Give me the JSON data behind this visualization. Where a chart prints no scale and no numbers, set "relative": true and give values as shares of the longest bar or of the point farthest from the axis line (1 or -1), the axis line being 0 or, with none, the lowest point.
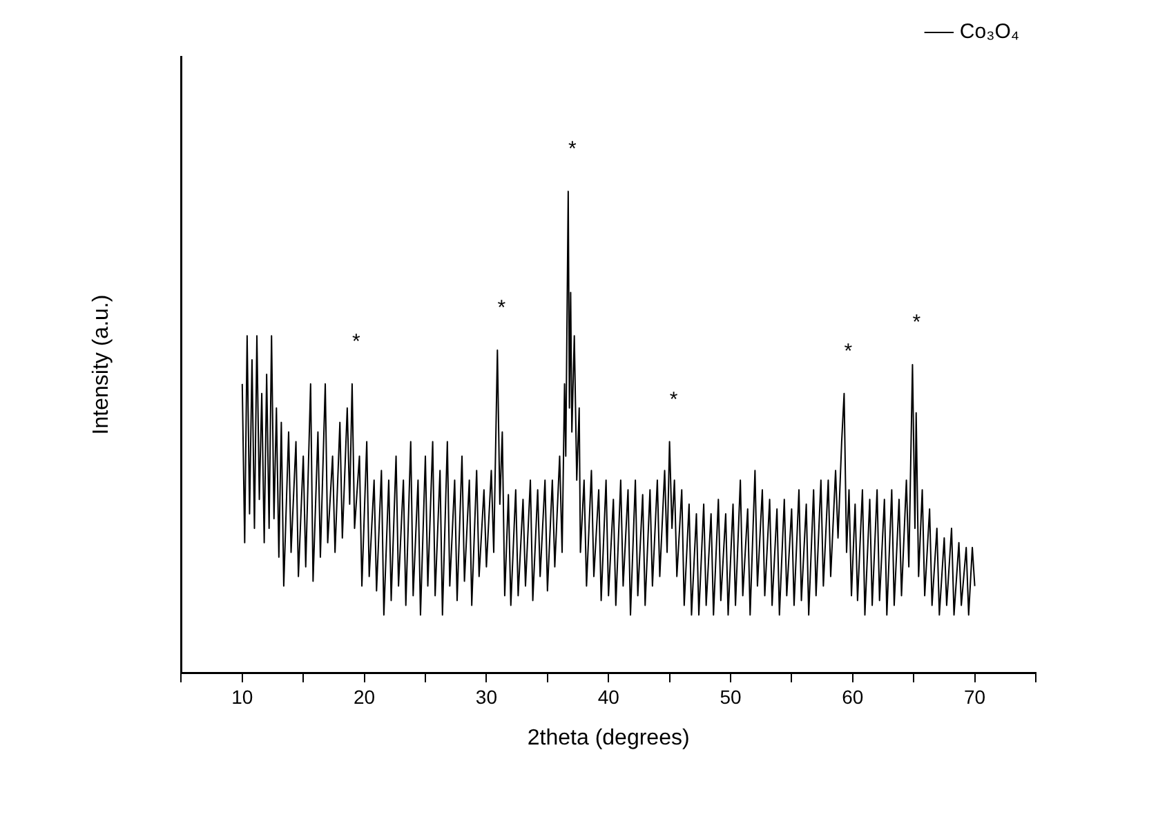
{
  "chart_data": {
    "type": "line",
    "xlabel": "2theta (degrees)",
    "ylabel": "Intensity (a.u.)",
    "relative": true,
    "xlim": [
      5,
      75
    ],
    "xticks": [
      {
        "value": 5,
        "label": null
      },
      10,
      {
        "value": 15,
        "label": null
      },
      20,
      {
        "value": 25,
        "label": null
      },
      30,
      {
        "value": 35,
        "label": null
      },
      40,
      {
        "value": 45,
        "label": null
      },
      50,
      {
        "value": 55,
        "label": null
      },
      60,
      {
        "value": 65,
        "label": null
      },
      70,
      {
        "value": 75,
        "label": null
      }
    ],
    "grid": false,
    "legend": "top right",
    "marker": "none",
    "line_style": "solid",
    "annotations": [
      {
        "text": "*",
        "x": 19,
        "y": 0.6
      },
      {
        "text": "*",
        "x": 30.9,
        "y": 0.67
      },
      {
        "text": "*",
        "x": 36.7,
        "y": 1.0
      },
      {
        "text": "*",
        "x": 45,
        "y": 0.48
      },
      {
        "text": "*",
        "x": 59.3,
        "y": 0.58
      },
      {
        "text": "*",
        "x": 64.9,
        "y": 0.64
      }
    ],
    "series": [
      {
        "name": "Co₃O₄",
        "color": "#000000",
        "x": [
          10,
          10.2,
          10.4,
          10.6,
          10.8,
          11,
          11.2,
          11.4,
          11.6,
          11.8,
          12,
          12.2,
          12.4,
          12.6,
          12.8,
          13,
          13.2,
          13.4,
          13.8,
          14,
          14.4,
          14.6,
          15,
          15.2,
          15.6,
          15.8,
          16.2,
          16.4,
          16.8,
          17,
          17.4,
          17.6,
          18,
          18.2,
          18.6,
          18.8,
          19,
          19.2,
          19.6,
          19.8,
          20.2,
          20.4,
          20.8,
          21,
          21.4,
          21.6,
          22,
          22.2,
          22.6,
          22.8,
          23.2,
          23.4,
          23.8,
          24,
          24.4,
          24.6,
          25,
          25.2,
          25.6,
          25.8,
          26.2,
          26.4,
          26.8,
          27,
          27.4,
          27.6,
          28,
          28.2,
          28.6,
          28.8,
          29.2,
          29.4,
          29.8,
          30,
          30.4,
          30.6,
          30.9,
          31.1,
          31.3,
          31.5,
          31.8,
          32,
          32.4,
          32.6,
          33,
          33.2,
          33.6,
          33.8,
          34.2,
          34.4,
          34.8,
          35,
          35.4,
          35.6,
          36,
          36.2,
          36.4,
          36.5,
          36.7,
          36.8,
          36.9,
          37,
          37.2,
          37.4,
          37.6,
          37.7,
          38,
          38.2,
          38.6,
          38.8,
          39.2,
          39.4,
          39.8,
          40,
          40.4,
          40.6,
          41,
          41.2,
          41.6,
          41.8,
          42.2,
          42.4,
          42.8,
          43,
          43.4,
          43.6,
          44,
          44.2,
          44.6,
          44.8,
          45,
          45.2,
          45.4,
          45.6,
          46,
          46.2,
          46.6,
          46.8,
          47.2,
          47.4,
          47.8,
          48,
          48.4,
          48.6,
          49,
          49.2,
          49.6,
          49.8,
          50.2,
          50.4,
          50.8,
          51,
          51.4,
          51.6,
          52,
          52.2,
          52.6,
          52.8,
          53.2,
          53.4,
          53.8,
          54,
          54.4,
          54.6,
          55,
          55.2,
          55.6,
          55.8,
          56.2,
          56.4,
          56.8,
          57,
          57.4,
          57.6,
          58,
          58.2,
          58.6,
          58.8,
          59.1,
          59.3,
          59.5,
          59.7,
          59.9,
          60.2,
          60.4,
          60.8,
          61,
          61.4,
          61.6,
          62,
          62.2,
          62.6,
          62.8,
          63.2,
          63.4,
          63.8,
          64,
          64.4,
          64.6,
          64.9,
          65.1,
          65.2,
          65.4,
          65.7,
          65.9,
          66.3,
          66.5,
          66.9,
          67.1,
          67.5,
          67.7,
          68.1,
          68.3,
          68.7,
          68.9,
          69.3,
          69.5,
          69.8,
          70
        ],
        "values": [
          0.6,
          0.27,
          0.7,
          0.33,
          0.65,
          0.3,
          0.7,
          0.36,
          0.58,
          0.27,
          0.62,
          0.3,
          0.7,
          0.32,
          0.55,
          0.24,
          0.52,
          0.18,
          0.5,
          0.25,
          0.48,
          0.2,
          0.45,
          0.22,
          0.6,
          0.19,
          0.5,
          0.24,
          0.6,
          0.27,
          0.45,
          0.25,
          0.52,
          0.28,
          0.55,
          0.35,
          0.6,
          0.3,
          0.45,
          0.18,
          0.48,
          0.2,
          0.4,
          0.17,
          0.42,
          0.12,
          0.4,
          0.15,
          0.45,
          0.18,
          0.4,
          0.14,
          0.48,
          0.16,
          0.4,
          0.12,
          0.45,
          0.18,
          0.48,
          0.16,
          0.42,
          0.12,
          0.48,
          0.18,
          0.4,
          0.15,
          0.45,
          0.19,
          0.4,
          0.14,
          0.42,
          0.2,
          0.38,
          0.22,
          0.42,
          0.25,
          0.67,
          0.35,
          0.5,
          0.16,
          0.37,
          0.14,
          0.38,
          0.16,
          0.36,
          0.18,
          0.4,
          0.15,
          0.38,
          0.2,
          0.4,
          0.17,
          0.4,
          0.22,
          0.45,
          0.25,
          0.6,
          0.45,
          1.0,
          0.55,
          0.79,
          0.5,
          0.7,
          0.4,
          0.55,
          0.25,
          0.4,
          0.18,
          0.42,
          0.2,
          0.38,
          0.15,
          0.4,
          0.16,
          0.36,
          0.14,
          0.4,
          0.18,
          0.38,
          0.12,
          0.4,
          0.16,
          0.37,
          0.14,
          0.38,
          0.18,
          0.4,
          0.2,
          0.42,
          0.25,
          0.48,
          0.3,
          0.4,
          0.2,
          0.38,
          0.14,
          0.35,
          0.12,
          0.33,
          0.12,
          0.35,
          0.14,
          0.33,
          0.12,
          0.36,
          0.15,
          0.33,
          0.12,
          0.35,
          0.14,
          0.4,
          0.16,
          0.34,
          0.12,
          0.42,
          0.18,
          0.38,
          0.16,
          0.36,
          0.14,
          0.34,
          0.12,
          0.36,
          0.16,
          0.34,
          0.14,
          0.38,
          0.15,
          0.35,
          0.12,
          0.38,
          0.16,
          0.4,
          0.18,
          0.4,
          0.2,
          0.42,
          0.28,
          0.48,
          0.58,
          0.25,
          0.38,
          0.16,
          0.35,
          0.15,
          0.38,
          0.12,
          0.36,
          0.14,
          0.38,
          0.15,
          0.36,
          0.12,
          0.38,
          0.14,
          0.36,
          0.16,
          0.4,
          0.22,
          0.64,
          0.3,
          0.54,
          0.2,
          0.38,
          0.16,
          0.34,
          0.14,
          0.3,
          0.12,
          0.28,
          0.14,
          0.3,
          0.12,
          0.27,
          0.14,
          0.26,
          0.12,
          0.26,
          0.18
        ]
      }
    ]
  }
}
